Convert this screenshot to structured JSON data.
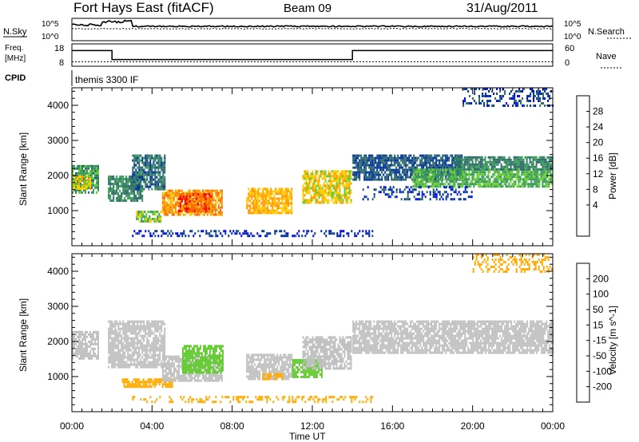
{
  "header": {
    "station": "Fort Hays East (fitACF)",
    "beam": "Beam 09",
    "date": "31/Aug/2011"
  },
  "top_panel": {
    "left_label": "N.Sky",
    "right_label": "N.Search",
    "left_ticks": [
      "10^5",
      "10^0"
    ],
    "right_ticks": [
      "10^5",
      "10^0"
    ]
  },
  "freq_panel": {
    "left_label_line1": "Freq.",
    "left_label_line2": "[MHz]",
    "right_label": "Nave",
    "left_ticks": [
      "18",
      "8"
    ],
    "right_ticks": [
      "60",
      "0"
    ],
    "freq_series": {
      "hours": [
        0,
        2,
        2,
        14,
        14,
        24
      ],
      "mhz": [
        15,
        15,
        11,
        11,
        15,
        15
      ]
    },
    "nave_series": {
      "hours": [
        0,
        24
      ],
      "value": [
        12,
        12
      ]
    }
  },
  "cpid": {
    "label": "CPID",
    "program": "themis 3300 IF"
  },
  "chart_data": [
    {
      "type": "heatmap",
      "title": "",
      "xlabel": "Time UT",
      "ylabel": "Slant Range [km]",
      "xlim_hours": [
        0,
        24
      ],
      "ylim_km": [
        0,
        4500
      ],
      "y_ticks": [
        "4000",
        "3000",
        "2000",
        "1000"
      ],
      "x_ticks": [
        "00:00",
        "04:00",
        "08:00",
        "12:00",
        "16:00",
        "20:00",
        "00:00"
      ],
      "colorbar": {
        "label": "Power [dB]",
        "ticks": [
          "28",
          "24",
          "20",
          "16",
          "12",
          "8",
          "4"
        ],
        "colors": [
          "#0000ff",
          "#003399",
          "#2d6b6b",
          "#3a9a5a",
          "#66cc33",
          "#ffcc00",
          "#ff9900",
          "#ff6600",
          "#ff0000"
        ]
      },
      "regions": [
        {
          "t0": 0.0,
          "t1": 1.3,
          "r0": 1500,
          "r1": 2300,
          "db": 14
        },
        {
          "t0": 0.0,
          "t1": 0.9,
          "r0": 1600,
          "r1": 2000,
          "db": 22
        },
        {
          "t0": 1.8,
          "t1": 3.5,
          "r0": 1300,
          "r1": 2000,
          "db": 12
        },
        {
          "t0": 3.0,
          "t1": 4.6,
          "r0": 1600,
          "r1": 2600,
          "db": 10
        },
        {
          "t0": 3.2,
          "t1": 4.4,
          "r0": 700,
          "r1": 1000,
          "db": 18
        },
        {
          "t0": 4.5,
          "t1": 7.5,
          "r0": 850,
          "r1": 1600,
          "db": 26
        },
        {
          "t0": 5.3,
          "t1": 7.0,
          "r0": 1000,
          "r1": 1500,
          "db": 30
        },
        {
          "t0": 8.7,
          "t1": 11.0,
          "r0": 900,
          "r1": 1650,
          "db": 24
        },
        {
          "t0": 11.5,
          "t1": 13.9,
          "r0": 1250,
          "r1": 2150,
          "db": 22
        },
        {
          "t0": 14.0,
          "t1": 19.5,
          "r0": 1900,
          "r1": 2600,
          "db": 8
        },
        {
          "t0": 17.0,
          "t1": 24.0,
          "r0": 1700,
          "r1": 2200,
          "db": 16
        },
        {
          "t0": 19.0,
          "t1": 24.0,
          "r0": 2200,
          "r1": 2550,
          "db": 12
        },
        {
          "t0": 14.5,
          "t1": 20.0,
          "r0": 1300,
          "r1": 1700,
          "db": 6
        },
        {
          "t0": 19.5,
          "t1": 24.0,
          "r0": 4000,
          "r1": 4500,
          "db": 6
        },
        {
          "t0": 3.0,
          "t1": 15.0,
          "r0": 250,
          "r1": 450,
          "db": 5
        }
      ]
    },
    {
      "type": "heatmap",
      "title": "",
      "xlabel": "Time UT",
      "ylabel": "Slant Range [km]",
      "xlim_hours": [
        0,
        24
      ],
      "ylim_km": [
        0,
        4500
      ],
      "y_ticks": [
        "4000",
        "3000",
        "2000",
        "1000"
      ],
      "x_ticks": [
        "00:00",
        "04:00",
        "08:00",
        "12:00",
        "16:00",
        "20:00",
        "00:00"
      ],
      "colorbar": {
        "label": "Velocity [m s^-1]",
        "ticks": [
          "200",
          "100",
          "50",
          "15",
          "-15",
          "-50",
          "-100",
          "-200"
        ],
        "colors": [
          "#0000cc",
          "#1a3399",
          "#2d6b3a",
          "#66cc33",
          "#c0c0c0",
          "#ffaa00",
          "#ff6600",
          "#ff2200",
          "#ff0000"
        ]
      },
      "regions": [
        {
          "t0": 0.0,
          "t1": 1.3,
          "r0": 1500,
          "r1": 2300,
          "ms": 0
        },
        {
          "t0": 1.8,
          "t1": 4.6,
          "r0": 1300,
          "r1": 2600,
          "ms": 0
        },
        {
          "t0": 2.5,
          "t1": 5.0,
          "r0": 700,
          "r1": 950,
          "ms": -40
        },
        {
          "t0": 4.5,
          "t1": 7.5,
          "r0": 850,
          "r1": 1600,
          "ms": 0
        },
        {
          "t0": 5.5,
          "t1": 7.5,
          "r0": 1100,
          "r1": 1900,
          "ms": 30
        },
        {
          "t0": 8.7,
          "t1": 11.0,
          "r0": 900,
          "r1": 1650,
          "ms": 0
        },
        {
          "t0": 9.5,
          "t1": 10.5,
          "r0": 900,
          "r1": 1100,
          "ms": -40
        },
        {
          "t0": 11.0,
          "t1": 12.5,
          "r0": 1000,
          "r1": 1500,
          "ms": 30
        },
        {
          "t0": 11.5,
          "t1": 13.9,
          "r0": 1250,
          "r1": 2150,
          "ms": 0
        },
        {
          "t0": 14.0,
          "t1": 24.0,
          "r0": 1700,
          "r1": 2600,
          "ms": 0
        },
        {
          "t0": 20.0,
          "t1": 24.0,
          "r0": 4000,
          "r1": 4500,
          "ms": -40
        },
        {
          "t0": 3.0,
          "t1": 15.0,
          "r0": 250,
          "r1": 450,
          "ms": -40
        }
      ]
    }
  ]
}
